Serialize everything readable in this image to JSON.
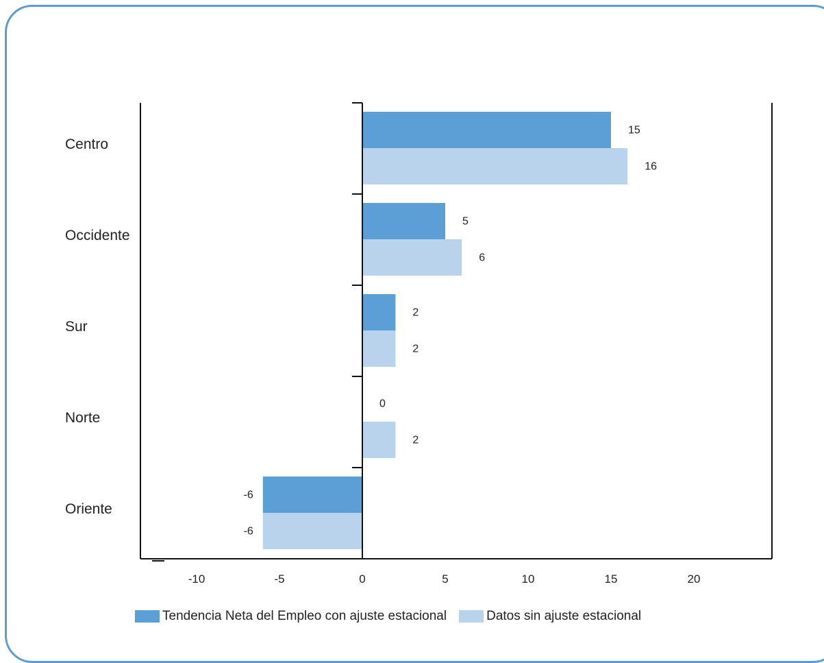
{
  "chart_data": {
    "type": "bar",
    "orientation": "horizontal",
    "categories": [
      "Centro",
      "Occidente",
      "Sur",
      "Norte",
      "Oriente"
    ],
    "series": [
      {
        "name": "Tendencia Neta del Empleo con ajuste estacional",
        "values": [
          15,
          5,
          2,
          0,
          -6
        ],
        "color": "#5b9fd6"
      },
      {
        "name": "Datos sin ajuste estacional",
        "values": [
          16,
          6,
          2,
          2,
          -6
        ],
        "color": "#b9d3ec"
      }
    ],
    "xlim": [
      -13,
      24
    ],
    "x_ticks": [
      -10,
      -5,
      0,
      5,
      10,
      15,
      20
    ],
    "legend_position": "bottom"
  }
}
